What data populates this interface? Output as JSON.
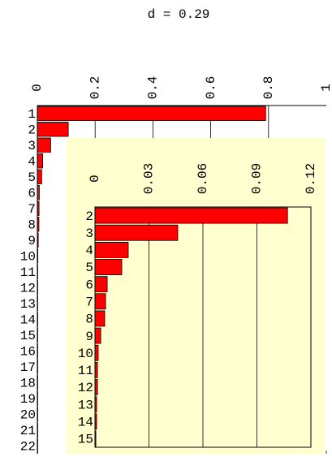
{
  "chart_data": [
    {
      "type": "bar",
      "title": "d = 0.29",
      "categories": [
        "1",
        "2",
        "3",
        "4",
        "5",
        "6",
        "7",
        "8",
        "9",
        "10",
        "11",
        "12",
        "13",
        "14",
        "15",
        "16",
        "17",
        "18",
        "19",
        "20",
        "21",
        "22"
      ],
      "values": [
        0.79,
        0.107,
        0.046,
        0.0185,
        0.0149,
        0.0068,
        0.0059,
        0.0054,
        0.0032,
        0.0018,
        0.0014,
        0.0014,
        0.0009,
        0.0009,
        0.0005,
        0.0004,
        0.0003,
        0.0003,
        0.0002,
        0.0002,
        0.0001,
        0.0001
      ],
      "color": "#ff0000",
      "xlim": [
        0,
        1
      ],
      "xticks": [
        0,
        0.2,
        0.4,
        0.6,
        0.8,
        1
      ],
      "grid": true
    },
    {
      "type": "bar",
      "categories": [
        "2",
        "3",
        "4",
        "5",
        "6",
        "7",
        "8",
        "9",
        "10",
        "11",
        "12",
        "13",
        "14",
        "15"
      ],
      "values": [
        0.107,
        0.046,
        0.0185,
        0.0149,
        0.0068,
        0.0059,
        0.0054,
        0.0032,
        0.0018,
        0.0014,
        0.0014,
        0.0009,
        0.0009,
        0.0005
      ],
      "color": "#ff0000",
      "xlim": [
        0,
        0.12
      ],
      "xticks": [
        0,
        0.03,
        0.06,
        0.09,
        0.12
      ],
      "grid": true,
      "background": "#ffffd0"
    }
  ]
}
